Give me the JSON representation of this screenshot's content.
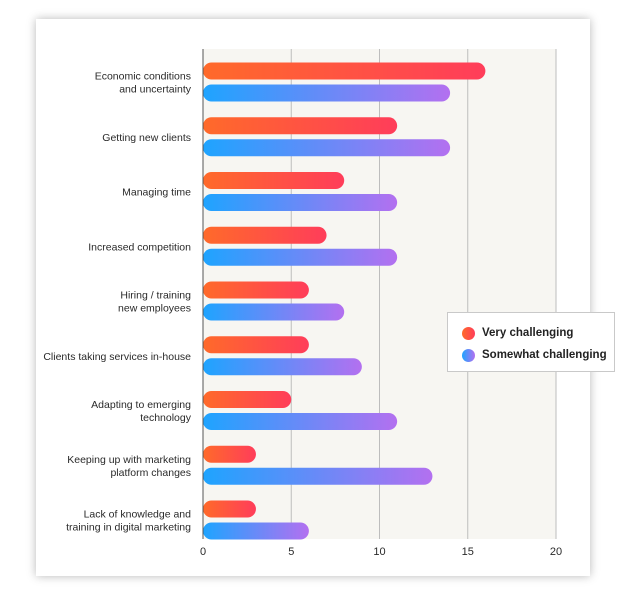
{
  "chart_data": {
    "type": "bar",
    "orientation": "horizontal",
    "categories": [
      [
        "Economic conditions",
        "and uncertainty"
      ],
      [
        "Getting new clients"
      ],
      [
        "Managing time"
      ],
      [
        "Increased competition"
      ],
      [
        "Hiring / training",
        "new employees"
      ],
      [
        "Clients taking services in-house"
      ],
      [
        "Adapting to emerging",
        "technology"
      ],
      [
        "Keeping up with marketing",
        "platform changes"
      ],
      [
        "Lack of knowledge and",
        "training in digital marketing"
      ]
    ],
    "series": [
      {
        "name": "Very challenging",
        "values": [
          16,
          11,
          8,
          7,
          6,
          6,
          5,
          3,
          3
        ],
        "gradient": [
          "#ff6a2a",
          "#ff3d5a"
        ]
      },
      {
        "name": "Somewhat challenging",
        "values": [
          14,
          14,
          11,
          11,
          8,
          9,
          11,
          13,
          6
        ],
        "gradient": [
          "#1ea4ff",
          "#b370f0"
        ]
      }
    ],
    "xlim": [
      0,
      20
    ],
    "xticks": [
      0,
      5,
      10,
      15,
      20
    ],
    "grid": true,
    "legend_position": "right",
    "plot_background": "#f7f6f2",
    "gridline_color": "#bdbdbd"
  }
}
